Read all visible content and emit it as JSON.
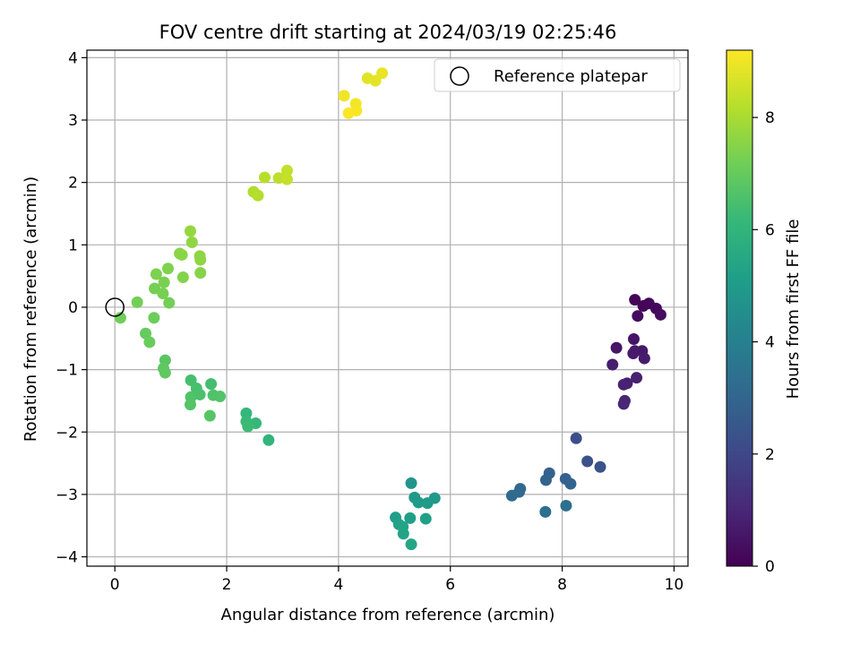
{
  "chart_data": {
    "type": "scatter",
    "title": "FOV centre drift starting at 2024/03/19 02:25:46",
    "xlabel": "Angular distance from reference (arcmin)",
    "ylabel": "Rotation from reference (arcmin)",
    "xlim": [
      -0.5,
      10.25
    ],
    "ylim": [
      -4.15,
      4.12
    ],
    "xticks": [
      "0",
      "2",
      "4",
      "6",
      "8",
      "10"
    ],
    "yticks": [
      "−4",
      "−3",
      "−2",
      "−1",
      "0",
      "1",
      "2",
      "3",
      "4"
    ],
    "grid": true,
    "legend": {
      "position": "top-right",
      "entries": [
        "Reference platepar"
      ]
    },
    "reference_point": {
      "x": 0,
      "y": 0,
      "marker": "open-circle"
    },
    "colorbar": {
      "label": "Hours from first FF file",
      "min": 0,
      "max": 9.2,
      "ticks": [
        "0",
        "2",
        "4",
        "6",
        "8"
      ],
      "colormap": "viridis",
      "stops": [
        "#440154",
        "#482878",
        "#3e4989",
        "#31688e",
        "#26828e",
        "#1f9e89",
        "#35b779",
        "#6ece58",
        "#b5de2b",
        "#fde725"
      ]
    },
    "points": [
      {
        "x": 9.3,
        "y": 0.12,
        "h": 0.05
      },
      {
        "x": 9.55,
        "y": 0.06,
        "h": 0.15
      },
      {
        "x": 9.45,
        "y": 0.02,
        "h": 0.1
      },
      {
        "x": 9.68,
        "y": -0.02,
        "h": 0.2
      },
      {
        "x": 9.35,
        "y": -0.14,
        "h": 0.25
      },
      {
        "x": 9.76,
        "y": -0.12,
        "h": 0.3
      },
      {
        "x": 9.28,
        "y": -0.51,
        "h": 0.5
      },
      {
        "x": 8.97,
        "y": -0.65,
        "h": 0.55
      },
      {
        "x": 9.3,
        "y": -0.7,
        "h": 0.6
      },
      {
        "x": 9.43,
        "y": -0.7,
        "h": 0.62
      },
      {
        "x": 9.27,
        "y": -0.74,
        "h": 0.65
      },
      {
        "x": 9.47,
        "y": -0.82,
        "h": 0.7
      },
      {
        "x": 8.9,
        "y": -0.92,
        "h": 0.75
      },
      {
        "x": 9.33,
        "y": -1.13,
        "h": 0.8
      },
      {
        "x": 9.16,
        "y": -1.22,
        "h": 0.85
      },
      {
        "x": 9.1,
        "y": -1.24,
        "h": 0.9
      },
      {
        "x": 9.12,
        "y": -1.5,
        "h": 0.95
      },
      {
        "x": 9.1,
        "y": -1.55,
        "h": 1.0
      },
      {
        "x": 8.25,
        "y": -2.1,
        "h": 2.2
      },
      {
        "x": 8.45,
        "y": -2.47,
        "h": 2.3
      },
      {
        "x": 8.68,
        "y": -2.56,
        "h": 2.4
      },
      {
        "x": 7.77,
        "y": -2.66,
        "h": 2.8
      },
      {
        "x": 8.06,
        "y": -2.75,
        "h": 2.85
      },
      {
        "x": 7.71,
        "y": -2.77,
        "h": 2.9
      },
      {
        "x": 8.15,
        "y": -2.83,
        "h": 2.95
      },
      {
        "x": 7.25,
        "y": -2.91,
        "h": 3.1
      },
      {
        "x": 7.23,
        "y": -2.96,
        "h": 3.15
      },
      {
        "x": 7.1,
        "y": -3.02,
        "h": 3.2
      },
      {
        "x": 7.7,
        "y": -3.28,
        "h": 3.3
      },
      {
        "x": 8.07,
        "y": -3.18,
        "h": 3.35
      },
      {
        "x": 5.3,
        "y": -2.82,
        "h": 4.8
      },
      {
        "x": 5.72,
        "y": -3.06,
        "h": 4.9
      },
      {
        "x": 5.36,
        "y": -3.05,
        "h": 4.95
      },
      {
        "x": 5.43,
        "y": -3.13,
        "h": 5.0
      },
      {
        "x": 5.59,
        "y": -3.14,
        "h": 5.05
      },
      {
        "x": 5.02,
        "y": -3.37,
        "h": 5.1
      },
      {
        "x": 5.28,
        "y": -3.38,
        "h": 5.15
      },
      {
        "x": 5.56,
        "y": -3.39,
        "h": 5.2
      },
      {
        "x": 5.08,
        "y": -3.48,
        "h": 5.25
      },
      {
        "x": 5.15,
        "y": -3.52,
        "h": 5.3
      },
      {
        "x": 5.16,
        "y": -3.63,
        "h": 5.35
      },
      {
        "x": 5.3,
        "y": -3.8,
        "h": 5.4
      },
      {
        "x": 2.75,
        "y": -2.13,
        "h": 6.0
      },
      {
        "x": 2.35,
        "y": -1.7,
        "h": 6.1
      },
      {
        "x": 2.52,
        "y": -1.86,
        "h": 6.15
      },
      {
        "x": 2.35,
        "y": -1.83,
        "h": 6.2
      },
      {
        "x": 2.38,
        "y": -1.91,
        "h": 6.25
      },
      {
        "x": 1.72,
        "y": -1.23,
        "h": 6.4
      },
      {
        "x": 1.36,
        "y": -1.17,
        "h": 6.45
      },
      {
        "x": 1.46,
        "y": -1.3,
        "h": 6.5
      },
      {
        "x": 1.52,
        "y": -1.4,
        "h": 6.55
      },
      {
        "x": 1.36,
        "y": -1.44,
        "h": 6.6
      },
      {
        "x": 1.76,
        "y": -1.41,
        "h": 6.62
      },
      {
        "x": 1.88,
        "y": -1.43,
        "h": 6.65
      },
      {
        "x": 1.35,
        "y": -1.56,
        "h": 6.7
      },
      {
        "x": 1.7,
        "y": -1.74,
        "h": 6.75
      },
      {
        "x": 0.9,
        "y": -0.85,
        "h": 6.8
      },
      {
        "x": 0.87,
        "y": -0.98,
        "h": 6.85
      },
      {
        "x": 0.9,
        "y": -1.05,
        "h": 6.9
      },
      {
        "x": 0.55,
        "y": -0.42,
        "h": 7.0
      },
      {
        "x": 0.62,
        "y": -0.56,
        "h": 7.05
      },
      {
        "x": 0.7,
        "y": -0.17,
        "h": 7.1
      },
      {
        "x": 0.1,
        "y": -0.17,
        "h": 7.15
      },
      {
        "x": 0.4,
        "y": 0.08,
        "h": 7.2
      },
      {
        "x": 0.97,
        "y": 0.07,
        "h": 7.22
      },
      {
        "x": 0.71,
        "y": 0.3,
        "h": 7.25
      },
      {
        "x": 0.86,
        "y": 0.22,
        "h": 7.28
      },
      {
        "x": 0.88,
        "y": 0.4,
        "h": 7.3
      },
      {
        "x": 0.74,
        "y": 0.53,
        "h": 7.35
      },
      {
        "x": 0.95,
        "y": 0.62,
        "h": 7.4
      },
      {
        "x": 1.22,
        "y": 0.48,
        "h": 7.45
      },
      {
        "x": 1.53,
        "y": 0.55,
        "h": 7.5
      },
      {
        "x": 1.16,
        "y": 0.86,
        "h": 7.55
      },
      {
        "x": 1.2,
        "y": 0.84,
        "h": 7.58
      },
      {
        "x": 1.52,
        "y": 0.82,
        "h": 7.6
      },
      {
        "x": 1.53,
        "y": 0.76,
        "h": 7.62
      },
      {
        "x": 1.38,
        "y": 1.04,
        "h": 7.65
      },
      {
        "x": 1.35,
        "y": 1.22,
        "h": 7.7
      },
      {
        "x": 2.48,
        "y": 1.85,
        "h": 8.1
      },
      {
        "x": 2.56,
        "y": 1.79,
        "h": 8.15
      },
      {
        "x": 2.68,
        "y": 2.08,
        "h": 8.2
      },
      {
        "x": 2.93,
        "y": 2.07,
        "h": 8.3
      },
      {
        "x": 3.08,
        "y": 2.19,
        "h": 8.35
      },
      {
        "x": 3.08,
        "y": 2.05,
        "h": 8.4
      },
      {
        "x": 4.52,
        "y": 3.67,
        "h": 8.8
      },
      {
        "x": 4.66,
        "y": 3.63,
        "h": 8.85
      },
      {
        "x": 4.78,
        "y": 3.75,
        "h": 8.9
      },
      {
        "x": 4.1,
        "y": 3.39,
        "h": 9.0
      },
      {
        "x": 4.31,
        "y": 3.26,
        "h": 9.05
      },
      {
        "x": 4.32,
        "y": 3.15,
        "h": 9.1
      },
      {
        "x": 4.18,
        "y": 3.11,
        "h": 9.15
      }
    ]
  }
}
